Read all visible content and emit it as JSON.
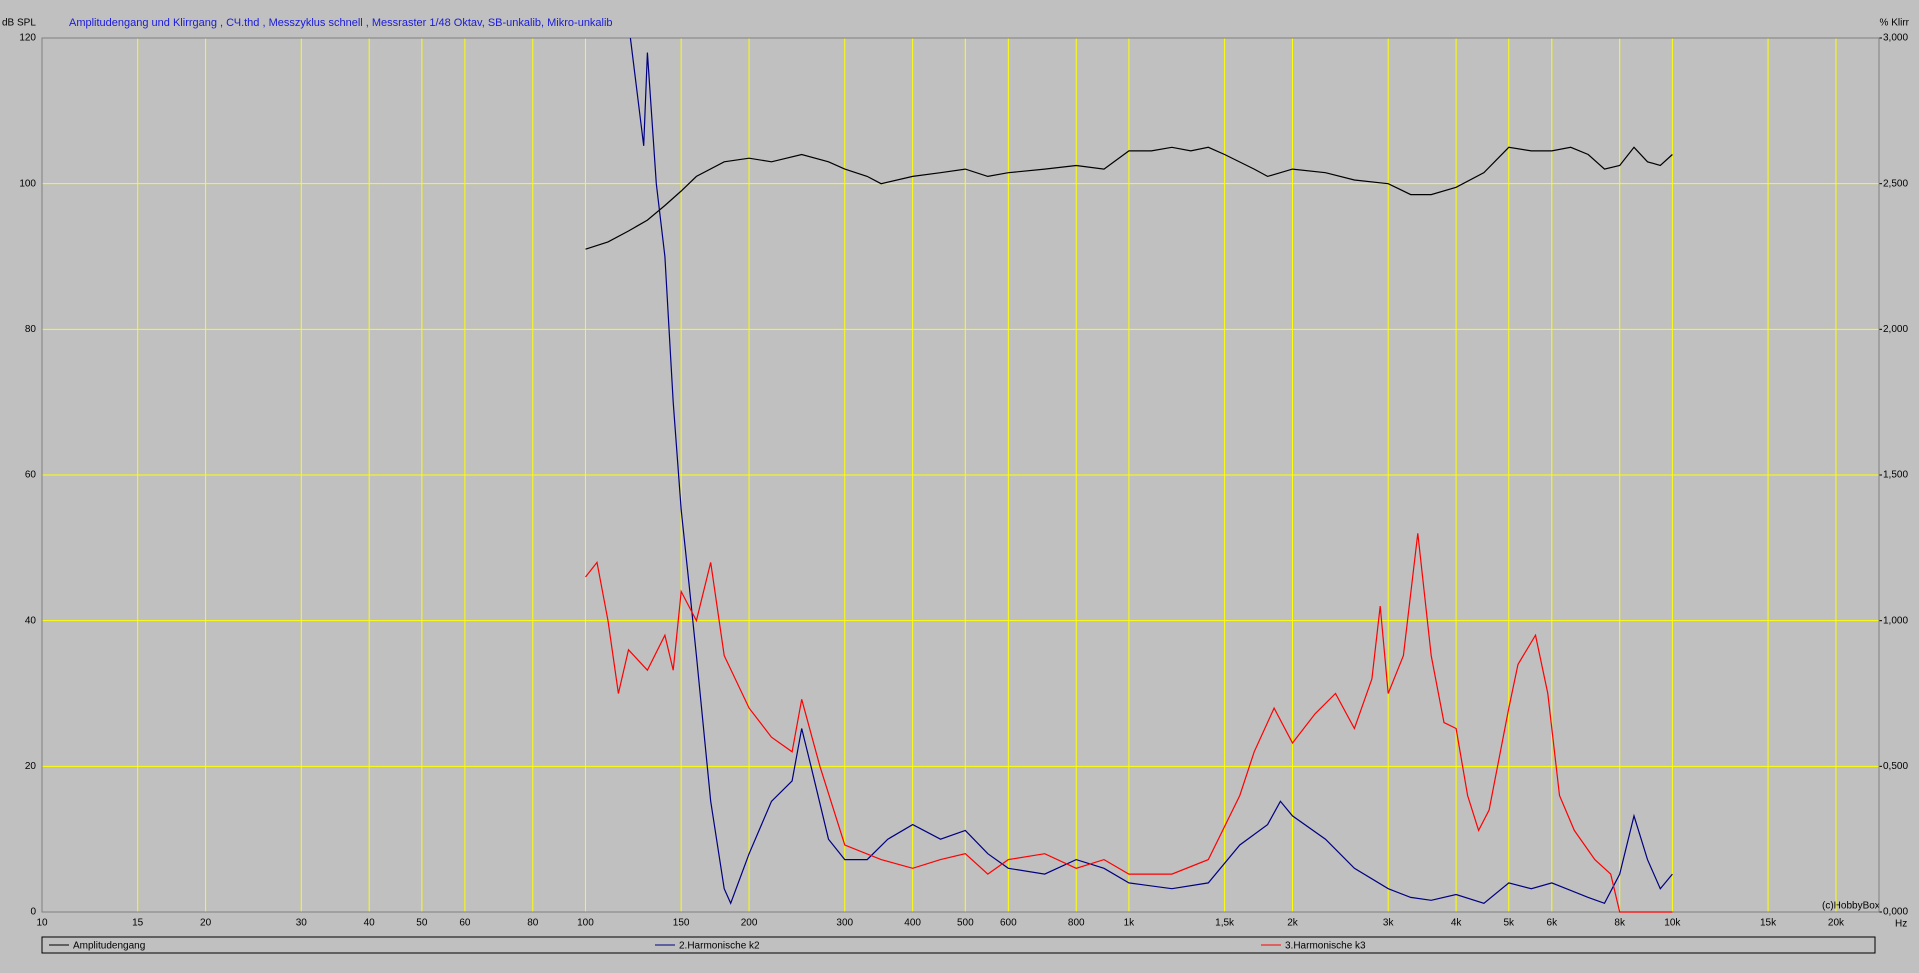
{
  "chart_data": {
    "type": "line",
    "title": "Amplitudengang und Klirrgang , СЧ.thd , Messzyklus schnell , Messraster 1/48 Oktav, SB-unkalib, Mikro-unkalib",
    "y_label": "dB SPL",
    "y2_label": "% Klirr",
    "x_label": "Hz",
    "annotation": "(c)HobbyBox",
    "log_x": true,
    "grid": true,
    "grid_color": "#ffff00",
    "xlim": [
      10,
      24000
    ],
    "xticks": [
      10,
      15,
      20,
      30,
      40,
      50,
      60,
      80,
      100,
      150,
      200,
      300,
      400,
      500,
      600,
      800,
      {
        "value": 1000,
        "label": "1k"
      },
      {
        "value": 1500,
        "label": "1,5k"
      },
      {
        "value": 2000,
        "label": "2k"
      },
      {
        "value": 3000,
        "label": "3k"
      },
      {
        "value": 4000,
        "label": "4k"
      },
      {
        "value": 5000,
        "label": "5k"
      },
      {
        "value": 6000,
        "label": "6k"
      },
      {
        "value": 8000,
        "label": "8k"
      },
      {
        "value": 10000,
        "label": "10k"
      },
      {
        "value": 15000,
        "label": "15k"
      },
      {
        "value": 20000,
        "label": "20k"
      }
    ],
    "ylim": [
      0,
      120
    ],
    "yticks": [
      0,
      20,
      40,
      60,
      80,
      100,
      120
    ],
    "y2lim": [
      0,
      3
    ],
    "y2ticks": [
      {
        "value": 0,
        "label": "0,000"
      },
      {
        "value": 0.5,
        "label": "0,500"
      },
      {
        "value": 1,
        "label": "1,000"
      },
      {
        "value": 1.5,
        "label": "1,500"
      },
      {
        "value": 2,
        "label": "2,000"
      },
      {
        "value": 2.5,
        "label": "2,500"
      },
      {
        "value": 3,
        "label": "3,000"
      }
    ],
    "series": [
      {
        "name": "Amplitudengang",
        "color": "#000000",
        "x": [
          100,
          110,
          120,
          130,
          140,
          150,
          160,
          180,
          200,
          220,
          250,
          280,
          300,
          330,
          350,
          400,
          450,
          500,
          550,
          600,
          700,
          800,
          900,
          1000,
          1100,
          1200,
          1300,
          1400,
          1500,
          1700,
          1800,
          2000,
          2300,
          2600,
          3000,
          3300,
          3600,
          4000,
          4500,
          5000,
          5500,
          6000,
          6500,
          7000,
          7500,
          8000,
          8500,
          9000,
          9500,
          10000
        ],
        "values": [
          91,
          92,
          93.5,
          95,
          97,
          99,
          101,
          103,
          103.5,
          103,
          104,
          103,
          102,
          101,
          100,
          101,
          101.5,
          102,
          101,
          101.5,
          102,
          102.5,
          102,
          104.5,
          104.5,
          105,
          104.5,
          105,
          104,
          102,
          101,
          102,
          101.5,
          100.5,
          100,
          98.5,
          98.5,
          99.5,
          101.5,
          105,
          104.5,
          104.5,
          105,
          104,
          102,
          102.5,
          105,
          103,
          102.5,
          104
        ]
      },
      {
        "name": "2.Harmonische k2",
        "color": "#000080",
        "axis": "y2",
        "x": [
          121,
          128,
          130,
          135,
          140,
          145,
          150,
          155,
          160,
          170,
          180,
          185,
          200,
          220,
          240,
          250,
          260,
          280,
          300,
          330,
          360,
          400,
          450,
          500,
          550,
          600,
          700,
          800,
          900,
          1000,
          1200,
          1400,
          1600,
          1800,
          1900,
          2000,
          2300,
          2600,
          3000,
          3300,
          3600,
          4000,
          4500,
          5000,
          5500,
          6000,
          7000,
          7500,
          8000,
          8500,
          9000,
          9500,
          10000
        ],
        "values": [
          3.0,
          2.63,
          2.95,
          2.5,
          2.25,
          1.75,
          1.38,
          1.13,
          0.88,
          0.38,
          0.08,
          0.03,
          0.2,
          0.38,
          0.45,
          0.63,
          0.5,
          0.25,
          0.18,
          0.18,
          0.25,
          0.3,
          0.25,
          0.28,
          0.2,
          0.15,
          0.13,
          0.18,
          0.15,
          0.1,
          0.08,
          0.1,
          0.23,
          0.3,
          0.38,
          0.33,
          0.25,
          0.15,
          0.08,
          0.05,
          0.04,
          0.06,
          0.03,
          0.1,
          0.08,
          0.1,
          0.05,
          0.03,
          0.13,
          0.33,
          0.18,
          0.08,
          0.13
        ]
      },
      {
        "name": "3.Harmonische k3",
        "color": "#ff0000",
        "axis": "y2",
        "x": [
          100,
          105,
          110,
          115,
          120,
          130,
          140,
          145,
          150,
          160,
          170,
          180,
          200,
          220,
          240,
          250,
          270,
          300,
          350,
          400,
          450,
          500,
          550,
          600,
          700,
          800,
          900,
          1000,
          1200,
          1400,
          1600,
          1700,
          1850,
          2000,
          2200,
          2400,
          2600,
          2800,
          2900,
          3000,
          3200,
          3400,
          3600,
          3800,
          4000,
          4200,
          4400,
          4600,
          5000,
          5200,
          5600,
          5900,
          6200,
          6600,
          7200,
          7700,
          8000,
          10000
        ],
        "values": [
          1.15,
          1.2,
          1.0,
          0.75,
          0.9,
          0.83,
          0.95,
          0.83,
          1.1,
          1.0,
          1.2,
          0.88,
          0.7,
          0.6,
          0.55,
          0.73,
          0.5,
          0.23,
          0.18,
          0.15,
          0.18,
          0.2,
          0.13,
          0.18,
          0.2,
          0.15,
          0.18,
          0.13,
          0.13,
          0.18,
          0.4,
          0.55,
          0.7,
          0.58,
          0.68,
          0.75,
          0.63,
          0.8,
          1.05,
          0.75,
          0.88,
          1.3,
          0.88,
          0.65,
          0.63,
          0.4,
          0.28,
          0.35,
          0.7,
          0.85,
          0.95,
          0.75,
          0.4,
          0.28,
          0.18,
          0.13,
          0,
          0
        ]
      }
    ]
  }
}
